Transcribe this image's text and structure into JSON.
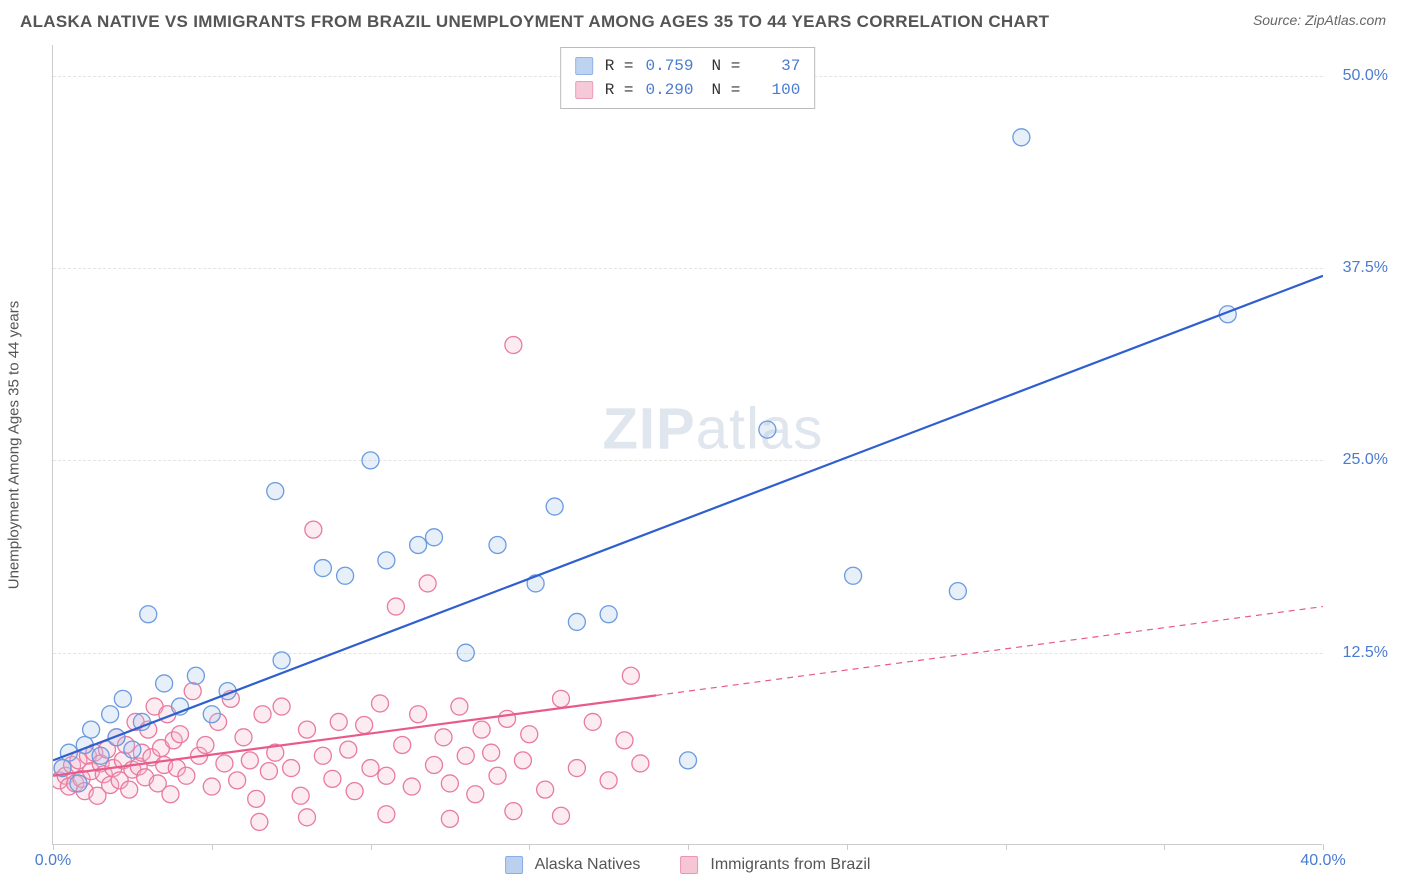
{
  "title": "ALASKA NATIVE VS IMMIGRANTS FROM BRAZIL UNEMPLOYMENT AMONG AGES 35 TO 44 YEARS CORRELATION CHART",
  "source": "Source: ZipAtlas.com",
  "ylabel": "Unemployment Among Ages 35 to 44 years",
  "watermark": {
    "part1": "ZIP",
    "part2": "atlas"
  },
  "chart": {
    "type": "scatter",
    "xlim": [
      0,
      40
    ],
    "ylim": [
      0,
      52
    ],
    "x_ticks": [
      0,
      5,
      10,
      15,
      20,
      25,
      30,
      35,
      40
    ],
    "x_tick_labels": {
      "0": "0.0%",
      "40": "40.0%"
    },
    "y_ticks": [
      12.5,
      25.0,
      37.5,
      50.0
    ],
    "y_tick_labels": [
      "12.5%",
      "25.0%",
      "37.5%",
      "50.0%"
    ],
    "background_color": "#ffffff",
    "grid_color": "#e4e4e4",
    "axis_color": "#cccccc",
    "tick_label_color": "#4a7bd0",
    "marker_radius": 8.5,
    "marker_stroke_width": 1.3,
    "marker_fill_opacity": 0.28,
    "line_width": 2.2,
    "series": [
      {
        "name": "Alaska Natives",
        "label": "Alaska Natives",
        "color": "#6b9be0",
        "fill": "#a9c5eb",
        "line_color": "#2f5fcf",
        "R": "0.759",
        "N": "37",
        "trend": {
          "x1": 0,
          "y1": 5.5,
          "x2": 40,
          "y2": 37.0,
          "solid_until_x": 40
        },
        "points": [
          [
            0.3,
            5.0
          ],
          [
            0.5,
            6.0
          ],
          [
            0.8,
            4.0
          ],
          [
            1.0,
            6.5
          ],
          [
            1.2,
            7.5
          ],
          [
            1.5,
            5.8
          ],
          [
            1.8,
            8.5
          ],
          [
            2.0,
            7.0
          ],
          [
            2.2,
            9.5
          ],
          [
            2.5,
            6.2
          ],
          [
            2.8,
            8.0
          ],
          [
            3.0,
            15.0
          ],
          [
            3.5,
            10.5
          ],
          [
            4.0,
            9.0
          ],
          [
            4.5,
            11.0
          ],
          [
            5.0,
            8.5
          ],
          [
            5.5,
            10.0
          ],
          [
            7.0,
            23.0
          ],
          [
            7.2,
            12.0
          ],
          [
            8.5,
            18.0
          ],
          [
            9.2,
            17.5
          ],
          [
            10.0,
            25.0
          ],
          [
            10.5,
            18.5
          ],
          [
            11.5,
            19.5
          ],
          [
            12.0,
            20.0
          ],
          [
            13.0,
            12.5
          ],
          [
            14.0,
            19.5
          ],
          [
            15.2,
            17.0
          ],
          [
            15.8,
            22.0
          ],
          [
            16.5,
            14.5
          ],
          [
            17.5,
            15.0
          ],
          [
            20.0,
            5.5
          ],
          [
            22.5,
            27.0
          ],
          [
            25.2,
            17.5
          ],
          [
            28.5,
            16.5
          ],
          [
            30.5,
            46.0
          ],
          [
            37.0,
            34.5
          ]
        ]
      },
      {
        "name": "Immigrants from Brazil",
        "label": "Immigrants from Brazil",
        "color": "#e87ba0",
        "fill": "#f4b8cb",
        "line_color": "#e85a8a",
        "R": "0.290",
        "N": "100",
        "trend": {
          "x1": 0,
          "y1": 4.5,
          "x2": 40,
          "y2": 15.5,
          "solid_until_x": 19
        },
        "points": [
          [
            0.2,
            4.2
          ],
          [
            0.3,
            5.0
          ],
          [
            0.4,
            4.5
          ],
          [
            0.5,
            3.8
          ],
          [
            0.6,
            5.2
          ],
          [
            0.7,
            4.0
          ],
          [
            0.8,
            5.5
          ],
          [
            0.9,
            4.3
          ],
          [
            1.0,
            3.5
          ],
          [
            1.1,
            5.8
          ],
          [
            1.2,
            4.8
          ],
          [
            1.3,
            6.0
          ],
          [
            1.4,
            3.2
          ],
          [
            1.5,
            5.3
          ],
          [
            1.6,
            4.6
          ],
          [
            1.7,
            6.2
          ],
          [
            1.8,
            3.9
          ],
          [
            1.9,
            5.0
          ],
          [
            2.0,
            7.0
          ],
          [
            2.1,
            4.2
          ],
          [
            2.2,
            5.5
          ],
          [
            2.3,
            6.5
          ],
          [
            2.4,
            3.6
          ],
          [
            2.5,
            4.9
          ],
          [
            2.6,
            8.0
          ],
          [
            2.7,
            5.1
          ],
          [
            2.8,
            6.0
          ],
          [
            2.9,
            4.4
          ],
          [
            3.0,
            7.5
          ],
          [
            3.1,
            5.7
          ],
          [
            3.2,
            9.0
          ],
          [
            3.3,
            4.0
          ],
          [
            3.4,
            6.3
          ],
          [
            3.5,
            5.2
          ],
          [
            3.6,
            8.5
          ],
          [
            3.7,
            3.3
          ],
          [
            3.8,
            6.8
          ],
          [
            3.9,
            5.0
          ],
          [
            4.0,
            7.2
          ],
          [
            4.2,
            4.5
          ],
          [
            4.4,
            10.0
          ],
          [
            4.6,
            5.8
          ],
          [
            4.8,
            6.5
          ],
          [
            5.0,
            3.8
          ],
          [
            5.2,
            8.0
          ],
          [
            5.4,
            5.3
          ],
          [
            5.6,
            9.5
          ],
          [
            5.8,
            4.2
          ],
          [
            6.0,
            7.0
          ],
          [
            6.2,
            5.5
          ],
          [
            6.4,
            3.0
          ],
          [
            6.6,
            8.5
          ],
          [
            6.8,
            4.8
          ],
          [
            7.0,
            6.0
          ],
          [
            7.2,
            9.0
          ],
          [
            7.5,
            5.0
          ],
          [
            7.8,
            3.2
          ],
          [
            8.0,
            7.5
          ],
          [
            8.2,
            20.5
          ],
          [
            8.5,
            5.8
          ],
          [
            8.8,
            4.3
          ],
          [
            9.0,
            8.0
          ],
          [
            9.3,
            6.2
          ],
          [
            9.5,
            3.5
          ],
          [
            9.8,
            7.8
          ],
          [
            10.0,
            5.0
          ],
          [
            10.3,
            9.2
          ],
          [
            10.5,
            4.5
          ],
          [
            10.8,
            15.5
          ],
          [
            11.0,
            6.5
          ],
          [
            11.3,
            3.8
          ],
          [
            11.5,
            8.5
          ],
          [
            11.8,
            17.0
          ],
          [
            12.0,
            5.2
          ],
          [
            12.3,
            7.0
          ],
          [
            12.5,
            4.0
          ],
          [
            12.8,
            9.0
          ],
          [
            13.0,
            5.8
          ],
          [
            13.3,
            3.3
          ],
          [
            13.5,
            7.5
          ],
          [
            13.8,
            6.0
          ],
          [
            14.0,
            4.5
          ],
          [
            14.3,
            8.2
          ],
          [
            14.5,
            32.5
          ],
          [
            14.8,
            5.5
          ],
          [
            15.0,
            7.2
          ],
          [
            15.5,
            3.6
          ],
          [
            16.0,
            9.5
          ],
          [
            16.5,
            5.0
          ],
          [
            17.0,
            8.0
          ],
          [
            17.5,
            4.2
          ],
          [
            18.0,
            6.8
          ],
          [
            18.2,
            11.0
          ],
          [
            18.5,
            5.3
          ],
          [
            6.5,
            1.5
          ],
          [
            8.0,
            1.8
          ],
          [
            10.5,
            2.0
          ],
          [
            12.5,
            1.7
          ],
          [
            14.5,
            2.2
          ],
          [
            16.0,
            1.9
          ]
        ]
      }
    ]
  },
  "stats_box": {
    "rows": [
      {
        "series_idx": 0,
        "R_label": "R =",
        "N_label": "N ="
      },
      {
        "series_idx": 1,
        "R_label": "R =",
        "N_label": "N ="
      }
    ]
  }
}
